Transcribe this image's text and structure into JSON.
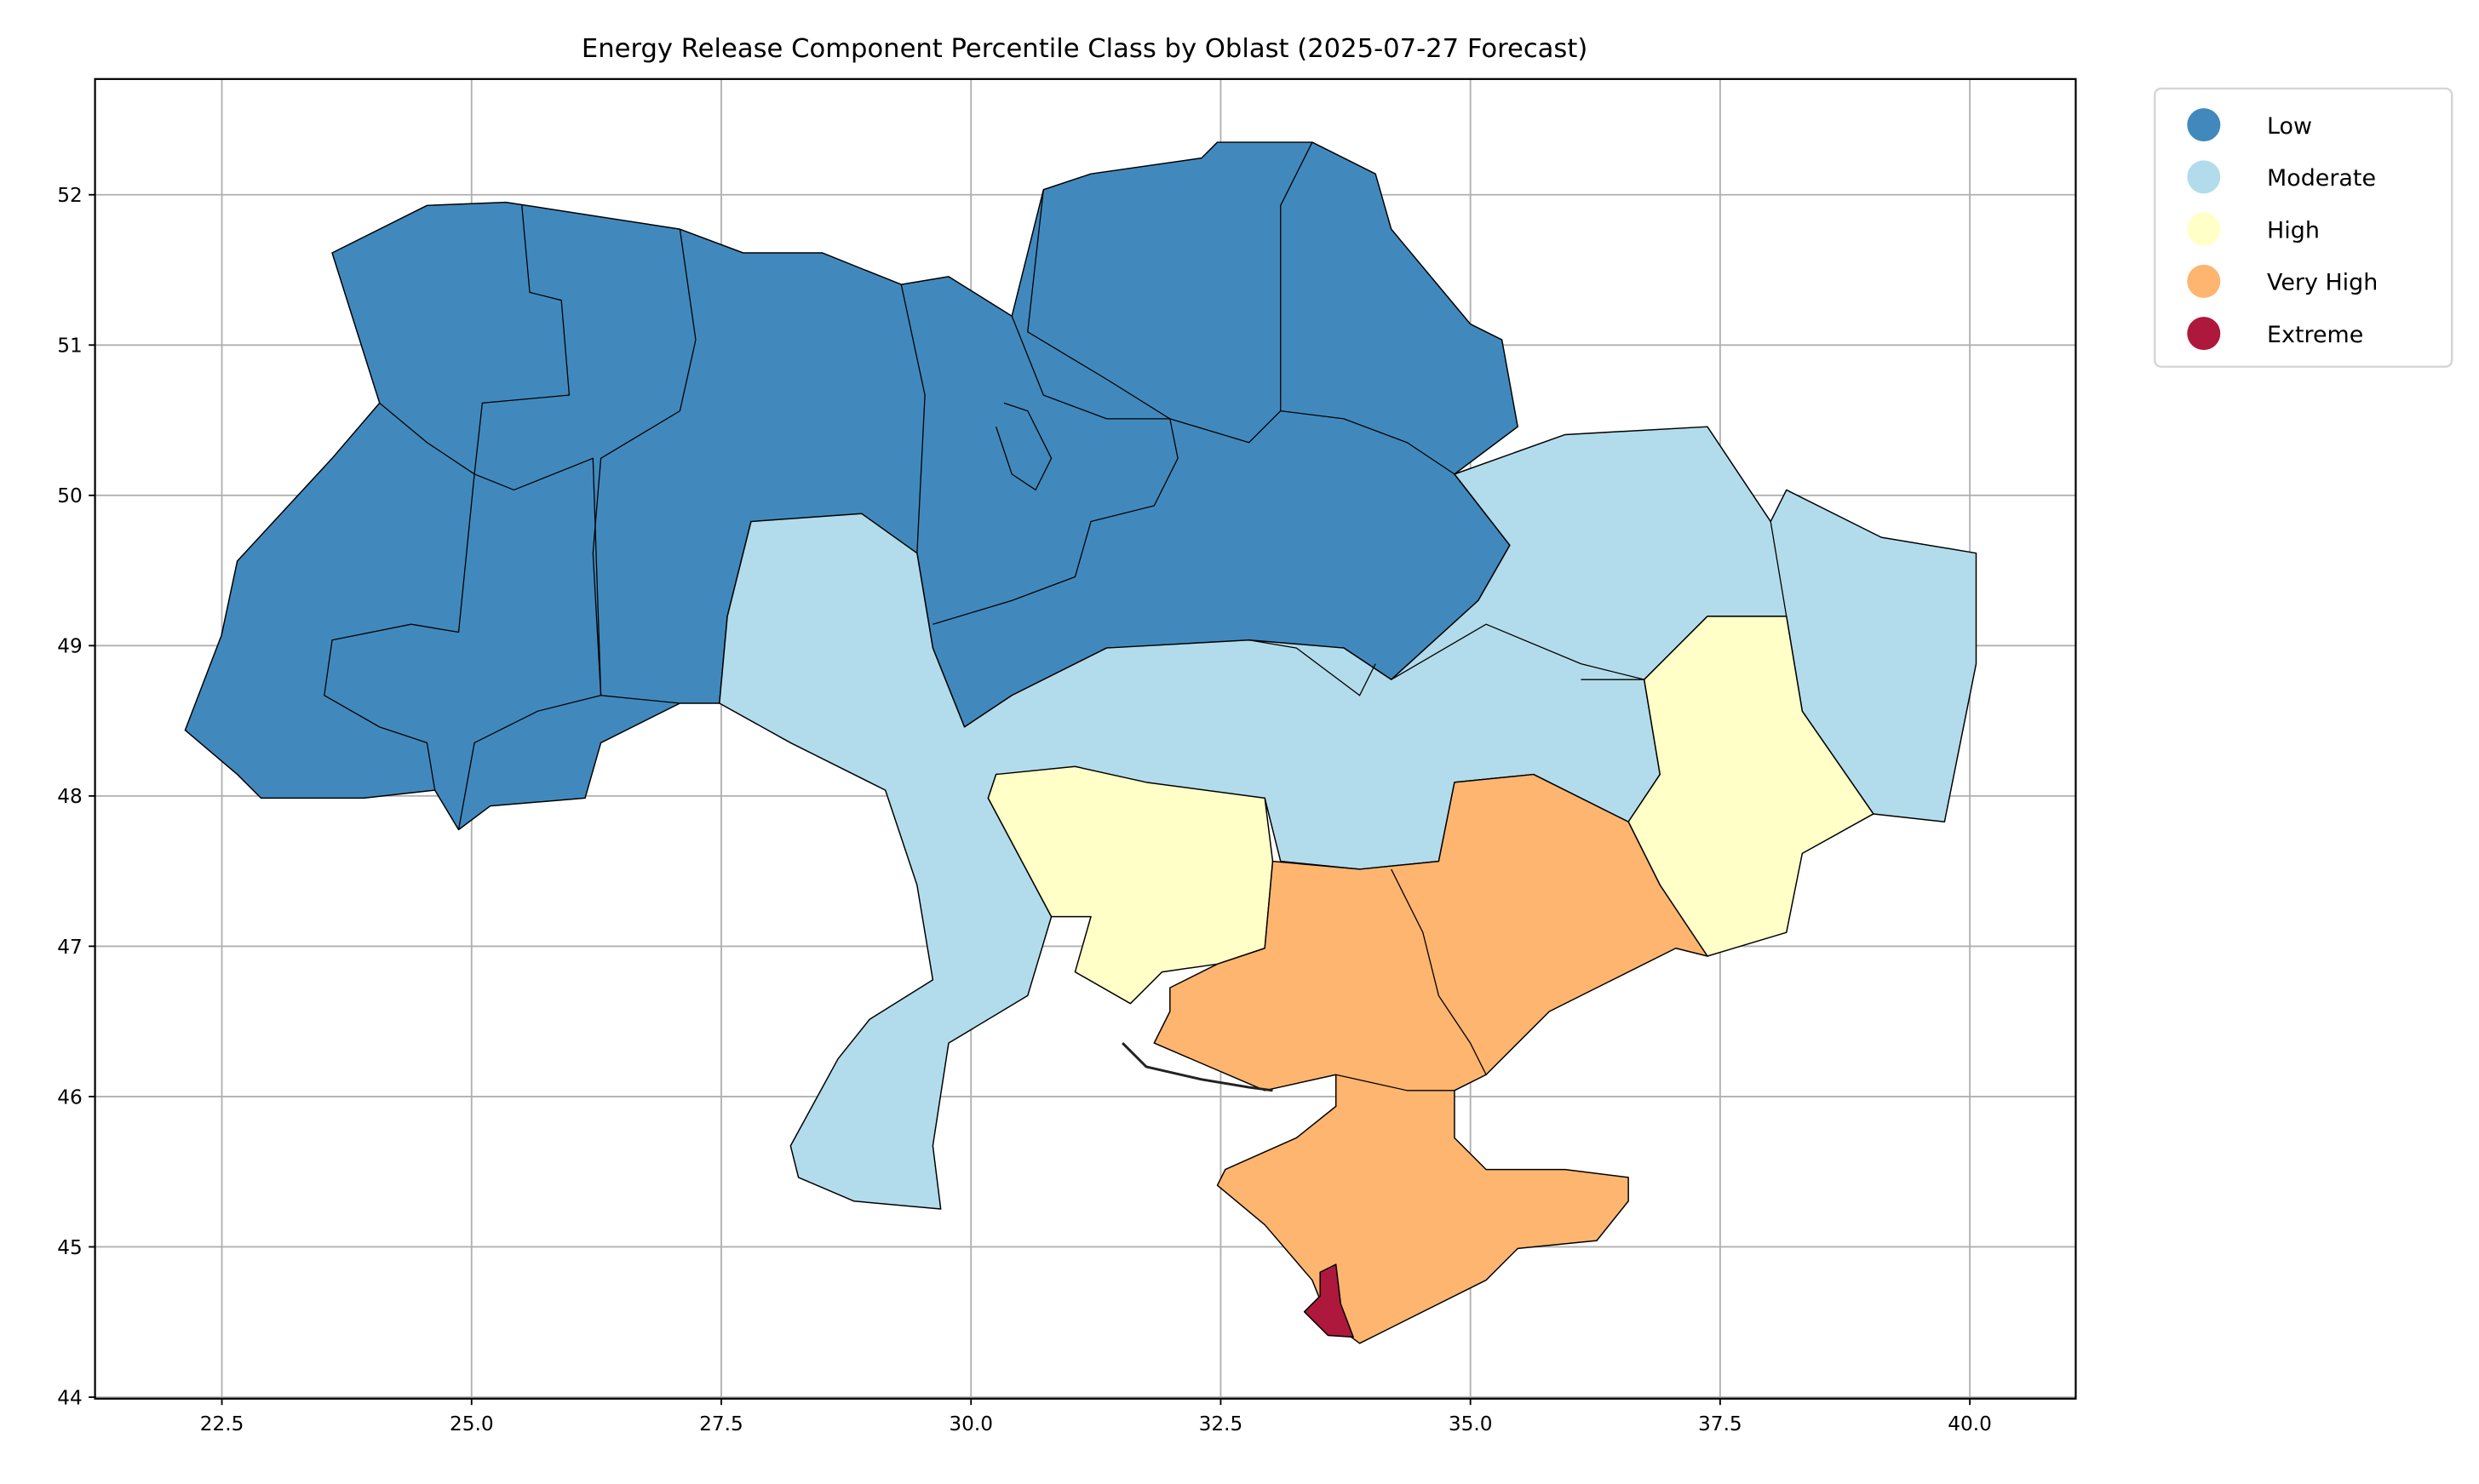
{
  "chart_data": {
    "type": "choropleth",
    "title": "Energy Release Component Percentile Class by Oblast (2025-07-27 Forecast)",
    "xlabel": "",
    "ylabel": "",
    "xlim": [
      21.23,
      41.06
    ],
    "ylim": [
      43.99,
      52.77
    ],
    "xticks": [
      "22.5",
      "25.0",
      "27.5",
      "30.0",
      "32.5",
      "35.0",
      "37.5",
      "40.0"
    ],
    "yticks": [
      "44",
      "45",
      "46",
      "47",
      "48",
      "49",
      "50",
      "51",
      "52"
    ],
    "grid": true,
    "legend_position": "outside-top-right",
    "legend": [
      {
        "label": "Low",
        "color": "#4189bd"
      },
      {
        "label": "Moderate",
        "color": "#b2dceb"
      },
      {
        "label": "High",
        "color": "#ffffc7"
      },
      {
        "label": "Very High",
        "color": "#fdb56f"
      },
      {
        "label": "Extreme",
        "color": "#ae183c"
      }
    ]
  }
}
